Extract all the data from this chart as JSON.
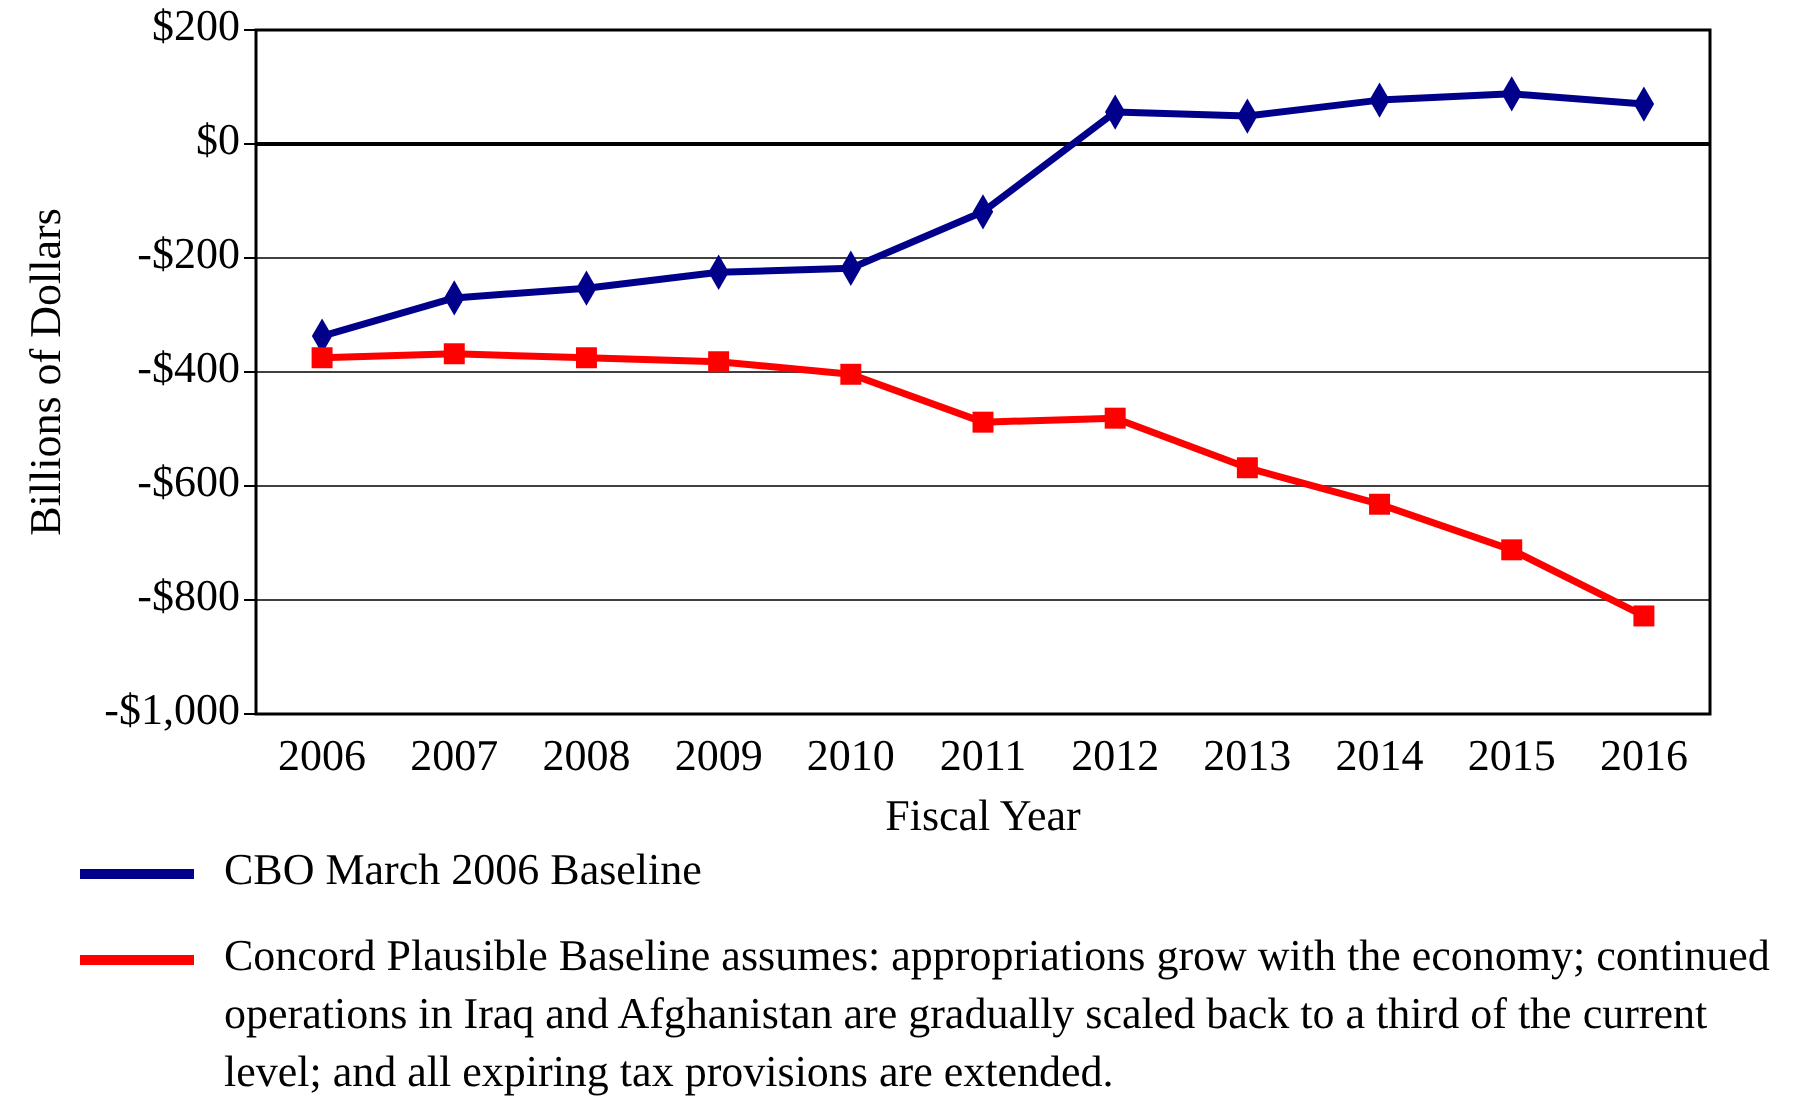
{
  "chart_data": {
    "type": "line",
    "xlabel": "Fiscal Year",
    "ylabel": "Billions of Dollars",
    "categories": [
      "2006",
      "2007",
      "2008",
      "2009",
      "2010",
      "2011",
      "2012",
      "2013",
      "2014",
      "2015",
      "2016"
    ],
    "series": [
      {
        "name": "CBO March 2006 Baseline",
        "color": "#00008b",
        "marker": "diamond",
        "values": [
          -337,
          -270,
          -253,
          -225,
          -218,
          -119,
          56,
          49,
          77,
          88,
          70
        ]
      },
      {
        "name": "Concord Plausible Baseline assumes:  appropriations grow with the economy; continued operations in Iraq and Afghanistan are gradually scaled back to a third of the current level; and all expiring tax provisions are extended.",
        "color": "#ff0000",
        "marker": "square",
        "values": [
          -375,
          -368,
          -375,
          -382,
          -404,
          -488,
          -481,
          -568,
          -632,
          -712,
          -828
        ]
      }
    ],
    "ylim": [
      -1000,
      200
    ],
    "yticks": [
      {
        "value": -1000,
        "label": "-$1,000"
      },
      {
        "value": -800,
        "label": "-$800"
      },
      {
        "value": -600,
        "label": "-$600"
      },
      {
        "value": -400,
        "label": "-$400"
      },
      {
        "value": -200,
        "label": "-$200"
      },
      {
        "value": 0,
        "label": "$0"
      },
      {
        "value": 200,
        "label": "$200"
      }
    ],
    "grid": "y",
    "legend": "bottom",
    "line_style": "solid",
    "ref_lines": [
      {
        "axis": "y",
        "value": 0,
        "color": "#000000"
      }
    ]
  }
}
